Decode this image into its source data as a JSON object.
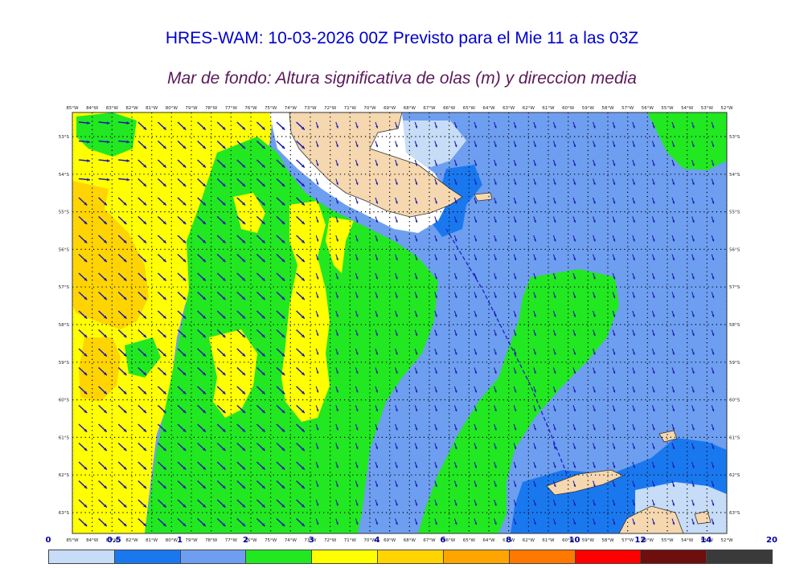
{
  "title": "HRES-WAM: 10-03-2026 00Z Previsto para el Mie 11 a las 03Z",
  "subtitle": "Mar de fondo: Altura significativa de olas (m) y direccion media",
  "map": {
    "lon_labels": [
      "85°W",
      "84°W",
      "83°W",
      "82°W",
      "81°W",
      "80°W",
      "79°W",
      "78°W",
      "77°W",
      "76°W",
      "75°W",
      "74°W",
      "73°W",
      "72°W",
      "71°W",
      "70°W",
      "69°W",
      "68°W",
      "67°W",
      "66°W",
      "65°W",
      "64°W",
      "63°W",
      "62°W",
      "61°W",
      "60°W",
      "59°W",
      "58°W",
      "57°W",
      "56°W",
      "55°W",
      "54°W",
      "53°W",
      "52°W"
    ],
    "lat_labels": [
      "53°S",
      "54°S",
      "55°S",
      "56°S",
      "57°S",
      "58°S",
      "59°S",
      "60°S",
      "61°S",
      "62°S",
      "63°S"
    ],
    "colors": {
      "land": "#f5d7b0",
      "ice": "#ffffff",
      "range_0_05": "#c6dcf7",
      "range_05_1": "#1a78ef",
      "range_1_2": "#6e9ef0",
      "range_2_3": "#22e822",
      "range_3_4": "#ffff00",
      "range_4_6": "#ffd400",
      "arrow": "#1a1aaa",
      "coast": "#333333"
    }
  },
  "colorbar": {
    "labels": [
      "0",
      "0.5",
      "1",
      "2",
      "3",
      "4",
      "6",
      "8",
      "10",
      "12",
      "14",
      "20"
    ],
    "colors": [
      "#c6dcf7",
      "#1a78ef",
      "#6e9ef0",
      "#22e822",
      "#ffff00",
      "#ffd400",
      "#ffa500",
      "#ff7800",
      "#ff0000",
      "#6e0e0e",
      "#3a3a3a"
    ]
  }
}
